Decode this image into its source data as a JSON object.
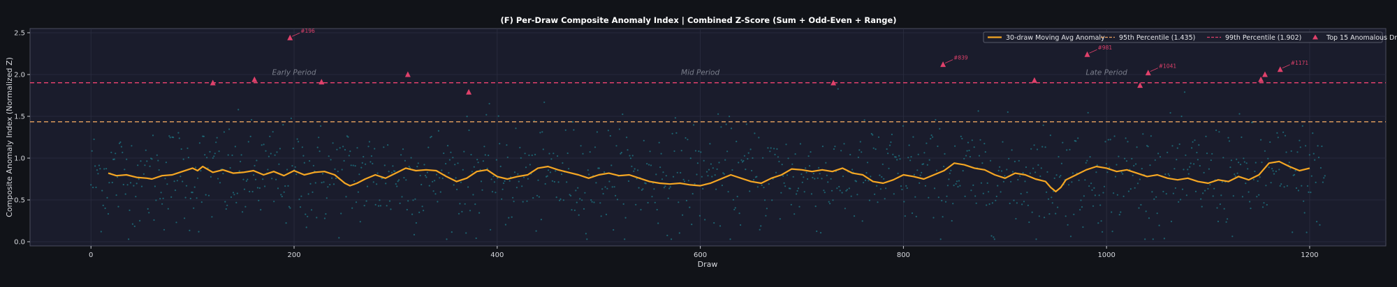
{
  "colors": {
    "background": "#111318",
    "plot_background": "#1a1c2c",
    "moving_avg": "#f5a623",
    "p95": "#e9a25f",
    "p99": "#e0416b",
    "scatter": "#1e8a96",
    "top15": "#e0416b",
    "grid": "#2b2e40"
  },
  "chart_data": {
    "type": "scatter",
    "title": "(F) Per-Draw Composite Anomaly Index  |  Combined Z-Score  (Sum + Odd-Even + Range)",
    "xlabel": "Draw",
    "ylabel": "Composite Anomaly Index (Normalized Z)",
    "xlim": [
      -60,
      1275
    ],
    "ylim": [
      -0.05,
      2.55
    ],
    "x_ticks": [
      0,
      200,
      400,
      600,
      800,
      1000,
      1200
    ],
    "y_ticks": [
      "0.0",
      "0.5",
      "1.0",
      "1.5",
      "2.0",
      "2.5"
    ],
    "grid": true,
    "legend_position": "top-right",
    "legend": [
      {
        "label": "30-draw Moving Avg Anomaly",
        "style": "line"
      },
      {
        "label": "95th Percentile (1.435)",
        "style": "dashed"
      },
      {
        "label": "99th Percentile (1.902)",
        "style": "dashed"
      },
      {
        "label": "Top 15 Anomalous Draws",
        "style": "triangle"
      }
    ],
    "series": [
      {
        "name": "30-draw Moving Avg Anomaly",
        "type": "line",
        "x": [
          17,
          25,
          35,
          45,
          55,
          60,
          70,
          80,
          90,
          100,
          105,
          110,
          120,
          130,
          140,
          150,
          160,
          170,
          180,
          190,
          200,
          210,
          220,
          230,
          240,
          250,
          255,
          262,
          270,
          280,
          290,
          300,
          310,
          320,
          330,
          340,
          350,
          360,
          370,
          380,
          390,
          400,
          410,
          420,
          430,
          440,
          450,
          460,
          470,
          480,
          490,
          500,
          510,
          520,
          530,
          540,
          550,
          560,
          570,
          580,
          590,
          600,
          610,
          620,
          630,
          640,
          650,
          660,
          670,
          680,
          690,
          700,
          710,
          720,
          730,
          740,
          750,
          760,
          770,
          780,
          790,
          800,
          810,
          820,
          830,
          840,
          850,
          860,
          870,
          880,
          890,
          900,
          910,
          920,
          930,
          940,
          945,
          950,
          955,
          960,
          970,
          980,
          990,
          1000,
          1010,
          1020,
          1030,
          1040,
          1050,
          1060,
          1070,
          1080,
          1090,
          1100,
          1110,
          1120,
          1130,
          1140,
          1150,
          1160,
          1170,
          1180,
          1190,
          1200
        ],
        "y": [
          0.82,
          0.79,
          0.8,
          0.77,
          0.76,
          0.75,
          0.79,
          0.8,
          0.84,
          0.88,
          0.85,
          0.9,
          0.83,
          0.86,
          0.82,
          0.83,
          0.85,
          0.8,
          0.84,
          0.79,
          0.85,
          0.8,
          0.83,
          0.84,
          0.8,
          0.7,
          0.67,
          0.7,
          0.75,
          0.8,
          0.76,
          0.82,
          0.88,
          0.85,
          0.86,
          0.85,
          0.78,
          0.72,
          0.76,
          0.84,
          0.86,
          0.78,
          0.75,
          0.78,
          0.8,
          0.88,
          0.9,
          0.86,
          0.83,
          0.8,
          0.76,
          0.8,
          0.82,
          0.79,
          0.8,
          0.76,
          0.72,
          0.7,
          0.69,
          0.7,
          0.68,
          0.67,
          0.7,
          0.75,
          0.8,
          0.76,
          0.72,
          0.7,
          0.76,
          0.8,
          0.87,
          0.86,
          0.84,
          0.86,
          0.84,
          0.88,
          0.82,
          0.8,
          0.72,
          0.7,
          0.74,
          0.8,
          0.78,
          0.75,
          0.8,
          0.85,
          0.94,
          0.92,
          0.88,
          0.86,
          0.8,
          0.76,
          0.82,
          0.8,
          0.75,
          0.72,
          0.65,
          0.6,
          0.65,
          0.74,
          0.8,
          0.86,
          0.9,
          0.88,
          0.84,
          0.86,
          0.82,
          0.78,
          0.8,
          0.76,
          0.74,
          0.76,
          0.72,
          0.7,
          0.74,
          0.72,
          0.78,
          0.74,
          0.8,
          0.94,
          0.96,
          0.9,
          0.85,
          0.88
        ]
      },
      {
        "name": "95th Percentile (1.435)",
        "type": "hline",
        "y": 1.435
      },
      {
        "name": "99th Percentile (1.902)",
        "type": "hline",
        "y": 1.902
      },
      {
        "name": "Top 15 Anomalous Draws",
        "type": "scatter",
        "points": [
          {
            "x": 120,
            "y": 1.9
          },
          {
            "x": 161,
            "y": 1.94
          },
          {
            "x": 196,
            "y": 2.44,
            "label": "#196"
          },
          {
            "x": 227,
            "y": 1.91
          },
          {
            "x": 312,
            "y": 2.0
          },
          {
            "x": 372,
            "y": 1.79
          },
          {
            "x": 731,
            "y": 1.9
          },
          {
            "x": 839,
            "y": 2.12,
            "label": "#839"
          },
          {
            "x": 929,
            "y": 1.93
          },
          {
            "x": 981,
            "y": 2.24,
            "label": "#981"
          },
          {
            "x": 1033,
            "y": 1.87
          },
          {
            "x": 1041,
            "y": 2.02,
            "label": "#1041"
          },
          {
            "x": 1152,
            "y": 1.94
          },
          {
            "x": 1156,
            "y": 2.0
          },
          {
            "x": 1171,
            "y": 2.06,
            "label": "#1171"
          }
        ]
      }
    ],
    "scatter_cloud": {
      "name": "Per-draw anomaly",
      "x_range": [
        0,
        1215
      ],
      "y_center": 0.78,
      "y_spread": 0.32,
      "count": 1215
    },
    "period_labels": [
      {
        "text": "Early Period",
        "x": 200,
        "y": 2.03
      },
      {
        "text": "Mid Period",
        "x": 600,
        "y": 2.03
      },
      {
        "text": "Late Period",
        "x": 1000,
        "y": 2.03
      }
    ]
  }
}
